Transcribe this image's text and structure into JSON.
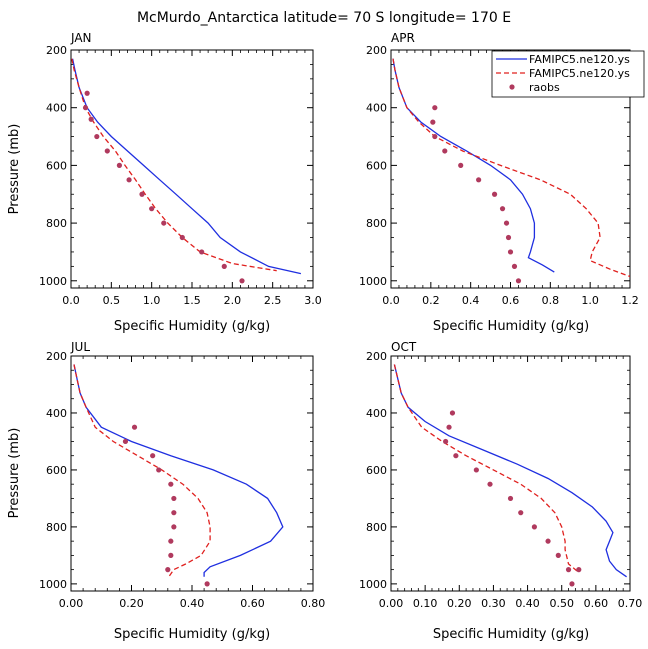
{
  "title": "McMurdo_Antarctica  latitude= 70 S longitude= 170 E",
  "legend": [
    {
      "label": "FAMIPC5.ne120.ys",
      "color": "#1f2fe0",
      "style": "solid"
    },
    {
      "label": "FAMIPC5.ne120.ys",
      "color": "#e0201e",
      "style": "dashed"
    },
    {
      "label": "raobs",
      "color": "#b03a5e",
      "style": "dot"
    }
  ],
  "chart_data": [
    {
      "type": "line",
      "title": "JAN",
      "xlabel": "Specific Humidity (g/kg)",
      "ylabel": "Pressure (mb)",
      "xlim": [
        0,
        3
      ],
      "ylim": [
        200,
        1025
      ],
      "y_inverted": true,
      "xticks": [
        "0.0",
        "0.5",
        "1.0",
        "1.5",
        "2.0",
        "2.5",
        "3.0"
      ],
      "xtick_values": [
        0,
        0.5,
        1.0,
        1.5,
        2.0,
        2.5,
        3.0
      ],
      "yticks": [
        "200",
        "400",
        "600",
        "800",
        "1000"
      ],
      "series": [
        {
          "name": "FAMIPC5.ne120.ys",
          "color": "#1f2fe0",
          "style": "solid",
          "points": [
            [
              0.02,
              230
            ],
            [
              0.05,
              270
            ],
            [
              0.1,
              330
            ],
            [
              0.2,
              400
            ],
            [
              0.33,
              450
            ],
            [
              0.5,
              500
            ],
            [
              0.7,
              550
            ],
            [
              0.9,
              600
            ],
            [
              1.1,
              650
            ],
            [
              1.3,
              700
            ],
            [
              1.5,
              750
            ],
            [
              1.7,
              800
            ],
            [
              1.85,
              850
            ],
            [
              2.1,
              900
            ],
            [
              2.45,
              950
            ],
            [
              2.85,
              975
            ]
          ]
        },
        {
          "name": "FAMIPC5.ne120.ys",
          "color": "#e0201e",
          "style": "dashed",
          "points": [
            [
              0.01,
              230
            ],
            [
              0.04,
              270
            ],
            [
              0.1,
              330
            ],
            [
              0.18,
              400
            ],
            [
              0.28,
              450
            ],
            [
              0.4,
              500
            ],
            [
              0.55,
              550
            ],
            [
              0.67,
              600
            ],
            [
              0.8,
              650
            ],
            [
              0.92,
              700
            ],
            [
              1.05,
              750
            ],
            [
              1.2,
              800
            ],
            [
              1.38,
              850
            ],
            [
              1.6,
              900
            ],
            [
              2.0,
              940
            ],
            [
              2.55,
              965
            ]
          ]
        },
        {
          "name": "raobs",
          "color": "#b03a5e",
          "style": "dot",
          "points": [
            [
              0.2,
              350
            ],
            [
              0.18,
              400
            ],
            [
              0.25,
              440
            ],
            [
              0.32,
              500
            ],
            [
              0.45,
              550
            ],
            [
              0.6,
              600
            ],
            [
              0.72,
              650
            ],
            [
              0.88,
              700
            ],
            [
              1.0,
              750
            ],
            [
              1.15,
              800
            ],
            [
              1.38,
              850
            ],
            [
              1.62,
              900
            ],
            [
              1.9,
              950
            ],
            [
              2.12,
              1000
            ]
          ]
        }
      ]
    },
    {
      "type": "line",
      "title": "APR",
      "xlabel": "Specific Humidity (g/kg)",
      "ylabel": "",
      "xlim": [
        0,
        1.2
      ],
      "ylim": [
        200,
        1025
      ],
      "y_inverted": true,
      "xticks": [
        "0.0",
        "0.2",
        "0.4",
        "0.6",
        "0.8",
        "1.0",
        "1.2"
      ],
      "xtick_values": [
        0,
        0.2,
        0.4,
        0.6,
        0.8,
        1.0,
        1.2
      ],
      "yticks": [
        "200",
        "400",
        "600",
        "800",
        "1000"
      ],
      "series": [
        {
          "name": "FAMIPC5.ne120.ys",
          "color": "#1f2fe0",
          "style": "solid",
          "points": [
            [
              0.01,
              230
            ],
            [
              0.02,
              270
            ],
            [
              0.04,
              330
            ],
            [
              0.08,
              400
            ],
            [
              0.15,
              450
            ],
            [
              0.25,
              500
            ],
            [
              0.38,
              550
            ],
            [
              0.5,
              600
            ],
            [
              0.6,
              650
            ],
            [
              0.66,
              700
            ],
            [
              0.7,
              750
            ],
            [
              0.72,
              800
            ],
            [
              0.72,
              850
            ],
            [
              0.7,
              900
            ],
            [
              0.69,
              920
            ],
            [
              0.76,
              945
            ],
            [
              0.82,
              970
            ]
          ]
        },
        {
          "name": "FAMIPC5.ne120.ys",
          "color": "#e0201e",
          "style": "dashed",
          "points": [
            [
              0.01,
              230
            ],
            [
              0.02,
              270
            ],
            [
              0.04,
              330
            ],
            [
              0.08,
              400
            ],
            [
              0.14,
              450
            ],
            [
              0.22,
              500
            ],
            [
              0.36,
              550
            ],
            [
              0.55,
              600
            ],
            [
              0.75,
              650
            ],
            [
              0.9,
              700
            ],
            [
              0.98,
              750
            ],
            [
              1.04,
              800
            ],
            [
              1.05,
              850
            ],
            [
              1.01,
              900
            ],
            [
              1.0,
              930
            ],
            [
              1.1,
              960
            ],
            [
              1.2,
              985
            ]
          ]
        },
        {
          "name": "raobs",
          "color": "#b03a5e",
          "style": "dot",
          "points": [
            [
              0.22,
              400
            ],
            [
              0.21,
              450
            ],
            [
              0.22,
              500
            ],
            [
              0.27,
              550
            ],
            [
              0.35,
              600
            ],
            [
              0.44,
              650
            ],
            [
              0.52,
              700
            ],
            [
              0.56,
              750
            ],
            [
              0.58,
              800
            ],
            [
              0.59,
              850
            ],
            [
              0.6,
              900
            ],
            [
              0.62,
              950
            ],
            [
              0.64,
              1000
            ]
          ]
        }
      ]
    },
    {
      "type": "line",
      "title": "JUL",
      "xlabel": "Specific Humidity (g/kg)",
      "ylabel": "Pressure (mb)",
      "xlim": [
        0,
        0.8
      ],
      "ylim": [
        200,
        1025
      ],
      "y_inverted": true,
      "xticks": [
        "0.00",
        "0.20",
        "0.40",
        "0.60",
        "0.80"
      ],
      "xtick_values": [
        0,
        0.2,
        0.4,
        0.6,
        0.8
      ],
      "yticks": [
        "200",
        "400",
        "600",
        "800",
        "1000"
      ],
      "series": [
        {
          "name": "FAMIPC5.ne120.ys",
          "color": "#1f2fe0",
          "style": "solid",
          "points": [
            [
              0.01,
              230
            ],
            [
              0.02,
              280
            ],
            [
              0.03,
              330
            ],
            [
              0.05,
              380
            ],
            [
              0.1,
              450
            ],
            [
              0.2,
              500
            ],
            [
              0.33,
              550
            ],
            [
              0.47,
              600
            ],
            [
              0.58,
              650
            ],
            [
              0.65,
              700
            ],
            [
              0.68,
              750
            ],
            [
              0.7,
              800
            ],
            [
              0.66,
              850
            ],
            [
              0.56,
              900
            ],
            [
              0.46,
              940
            ],
            [
              0.44,
              960
            ],
            [
              0.44,
              975
            ]
          ]
        },
        {
          "name": "FAMIPC5.ne120.ys",
          "color": "#e0201e",
          "style": "dashed",
          "points": [
            [
              0.01,
              230
            ],
            [
              0.02,
              280
            ],
            [
              0.03,
              330
            ],
            [
              0.05,
              380
            ],
            [
              0.08,
              450
            ],
            [
              0.14,
              500
            ],
            [
              0.22,
              550
            ],
            [
              0.3,
              600
            ],
            [
              0.37,
              650
            ],
            [
              0.42,
              700
            ],
            [
              0.45,
              750
            ],
            [
              0.46,
              800
            ],
            [
              0.46,
              850
            ],
            [
              0.43,
              900
            ],
            [
              0.38,
              930
            ],
            [
              0.34,
              950
            ],
            [
              0.32,
              980
            ]
          ]
        },
        {
          "name": "raobs",
          "color": "#b03a5e",
          "style": "dot",
          "points": [
            [
              0.21,
              450
            ],
            [
              0.18,
              500
            ],
            [
              0.27,
              550
            ],
            [
              0.29,
              600
            ],
            [
              0.33,
              650
            ],
            [
              0.34,
              700
            ],
            [
              0.34,
              750
            ],
            [
              0.34,
              800
            ],
            [
              0.33,
              850
            ],
            [
              0.33,
              900
            ],
            [
              0.32,
              950
            ],
            [
              0.45,
              1000
            ]
          ]
        }
      ]
    },
    {
      "type": "line",
      "title": "OCT",
      "xlabel": "Specific Humidity (g/kg)",
      "ylabel": "",
      "xlim": [
        0,
        0.7
      ],
      "ylim": [
        200,
        1025
      ],
      "y_inverted": true,
      "xticks": [
        "0.00",
        "0.10",
        "0.20",
        "0.30",
        "0.40",
        "0.50",
        "0.60",
        "0.70"
      ],
      "xtick_values": [
        0,
        0.1,
        0.2,
        0.3,
        0.4,
        0.5,
        0.6,
        0.7
      ],
      "yticks": [
        "200",
        "400",
        "600",
        "800",
        "1000"
      ],
      "series": [
        {
          "name": "FAMIPC5.ne120.ys",
          "color": "#1f2fe0",
          "style": "solid",
          "points": [
            [
              0.01,
              230
            ],
            [
              0.02,
              280
            ],
            [
              0.03,
              330
            ],
            [
              0.05,
              380
            ],
            [
              0.1,
              430
            ],
            [
              0.17,
              480
            ],
            [
              0.27,
              530
            ],
            [
              0.37,
              580
            ],
            [
              0.46,
              630
            ],
            [
              0.53,
              680
            ],
            [
              0.59,
              730
            ],
            [
              0.63,
              780
            ],
            [
              0.65,
              820
            ],
            [
              0.64,
              850
            ],
            [
              0.63,
              880
            ],
            [
              0.64,
              920
            ],
            [
              0.66,
              950
            ],
            [
              0.69,
              975
            ]
          ]
        },
        {
          "name": "FAMIPC5.ne120.ys",
          "color": "#e0201e",
          "style": "dashed",
          "points": [
            [
              0.01,
              230
            ],
            [
              0.02,
              280
            ],
            [
              0.03,
              330
            ],
            [
              0.05,
              380
            ],
            [
              0.09,
              450
            ],
            [
              0.15,
              500
            ],
            [
              0.22,
              550
            ],
            [
              0.3,
              600
            ],
            [
              0.38,
              650
            ],
            [
              0.44,
              700
            ],
            [
              0.48,
              750
            ],
            [
              0.5,
              800
            ],
            [
              0.51,
              850
            ],
            [
              0.51,
              880
            ],
            [
              0.52,
              930
            ],
            [
              0.54,
              950
            ],
            [
              0.55,
              960
            ]
          ]
        },
        {
          "name": "raobs",
          "color": "#b03a5e",
          "style": "dot",
          "points": [
            [
              0.18,
              400
            ],
            [
              0.17,
              450
            ],
            [
              0.16,
              500
            ],
            [
              0.19,
              550
            ],
            [
              0.25,
              600
            ],
            [
              0.29,
              650
            ],
            [
              0.35,
              700
            ],
            [
              0.38,
              750
            ],
            [
              0.42,
              800
            ],
            [
              0.46,
              850
            ],
            [
              0.49,
              900
            ],
            [
              0.52,
              950
            ],
            [
              0.53,
              1000
            ],
            [
              0.55,
              950
            ]
          ]
        }
      ]
    }
  ]
}
